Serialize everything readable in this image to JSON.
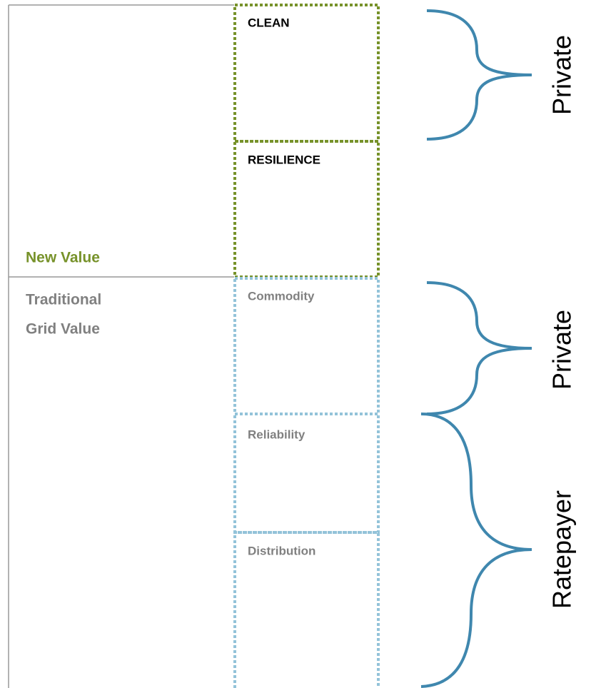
{
  "left_labels": {
    "new_value": "New Value",
    "traditional": [
      "Traditional",
      "Grid Value"
    ]
  },
  "boxes": [
    "CLEAN",
    "RESILIENCE",
    "Commodity",
    "Reliability",
    "Distribution"
  ],
  "groups": [
    "Private",
    "Private",
    "Ratepayer"
  ]
}
